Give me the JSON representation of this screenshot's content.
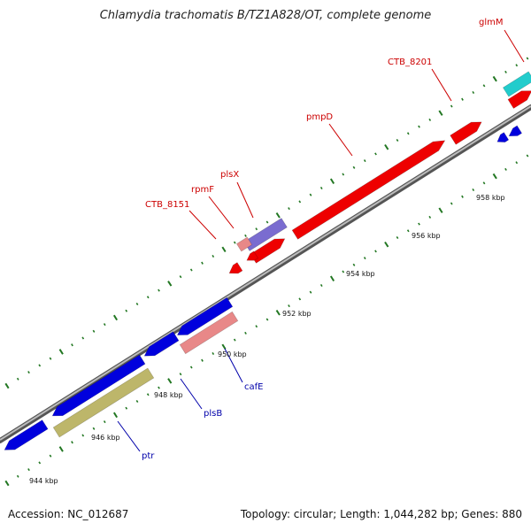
{
  "title": "Chlamydia trachomatis B/TZ1A828/OT, complete genome",
  "footer": {
    "accession": "Accession: NC_012687",
    "summary": "Topology: circular; Length: 1,044,282 bp; Genes: 880"
  },
  "colors": {
    "forward_gene": "#ee0000",
    "reverse_gene": "#0000dd",
    "rRNA": "#7a6cd0",
    "pseudo": "#e88888",
    "other_reverse": "#bdb66a",
    "teal_gene": "#22cccc",
    "backbone": "#7a7a7a",
    "tick": "#227722",
    "forward_label": "#cc0000",
    "reverse_label": "#0000aa"
  },
  "kbp_labels": [
    {
      "text": "944 kbp",
      "kbp": 944
    },
    {
      "text": "946 kbp",
      "kbp": 946
    },
    {
      "text": "948 kbp",
      "kbp": 948
    },
    {
      "text": "950 kbp",
      "kbp": 950
    },
    {
      "text": "952 kbp",
      "kbp": 952
    },
    {
      "text": "954 kbp",
      "kbp": 954
    },
    {
      "text": "956 kbp",
      "kbp": 956
    },
    {
      "text": "958 kbp",
      "kbp": 958
    }
  ],
  "gene_labels": {
    "forward": [
      {
        "name": "glmM"
      },
      {
        "name": "CTB_8201"
      },
      {
        "name": "pmpD"
      },
      {
        "name": "plsX"
      },
      {
        "name": "rpmF"
      },
      {
        "name": "CTB_8151"
      }
    ],
    "reverse": [
      {
        "name": "cafE"
      },
      {
        "name": "plsB"
      },
      {
        "name": "ptr"
      }
    ]
  }
}
